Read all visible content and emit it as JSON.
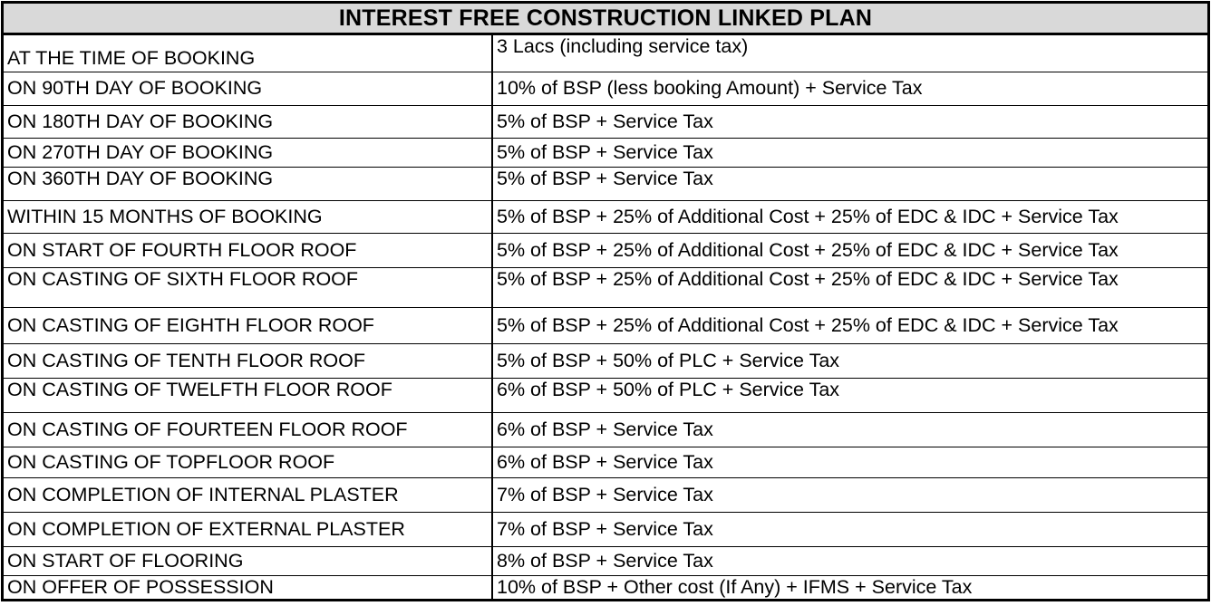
{
  "title": "INTEREST FREE CONSTRUCTION LINKED PLAN",
  "rows": [
    {
      "stage": "AT THE TIME OF BOOKING",
      "payment": "3 Lacs (including service tax)"
    },
    {
      "stage": "ON 90TH DAY OF BOOKING",
      "payment": "10% of BSP (less booking Amount) + Service Tax"
    },
    {
      "stage": "ON 180TH DAY OF BOOKING",
      "payment": "5% of BSP + Service Tax"
    },
    {
      "stage": "ON 270TH DAY OF BOOKING",
      "payment": "5% of BSP + Service Tax"
    },
    {
      "stage": "ON 360TH DAY OF BOOKING",
      "payment": "5% of BSP + Service Tax"
    },
    {
      "stage": "WITHIN 15 MONTHS OF BOOKING",
      "payment": "5% of BSP + 25% of Additional Cost + 25% of EDC & IDC + Service Tax"
    },
    {
      "stage": "ON START OF FOURTH FLOOR ROOF",
      "payment": "5% of BSP + 25% of Additional Cost + 25% of EDC & IDC + Service Tax"
    },
    {
      "stage": "ON CASTING OF SIXTH FLOOR ROOF",
      "payment": "5% of BSP + 25% of Additional Cost + 25% of EDC & IDC + Service Tax"
    },
    {
      "stage": "ON CASTING OF EIGHTH FLOOR ROOF",
      "payment": "5% of BSP + 25% of Additional Cost + 25% of EDC & IDC + Service Tax"
    },
    {
      "stage": "ON CASTING OF TENTH FLOOR ROOF",
      "payment": "5% of BSP + 50% of PLC + Service Tax"
    },
    {
      "stage": "ON CASTING OF TWELFTH FLOOR ROOF",
      "payment": "6% of BSP + 50% of PLC + Service Tax"
    },
    {
      "stage": "ON CASTING OF FOURTEEN FLOOR ROOF",
      "payment": "6% of BSP + Service Tax"
    },
    {
      "stage": "ON CASTING OF TOPFLOOR ROOF",
      "payment": "6% of BSP + Service Tax"
    },
    {
      "stage": "ON COMPLETION OF INTERNAL PLASTER",
      "payment": "7% of BSP + Service Tax"
    },
    {
      "stage": "ON COMPLETION OF EXTERNAL PLASTER",
      "payment": "7% of BSP + Service Tax"
    },
    {
      "stage": "ON START OF FLOORING",
      "payment": "8% of BSP + Service Tax"
    },
    {
      "stage": "ON OFFER OF POSSESSION",
      "payment": "10% of BSP + Other cost (If Any) + IFMS + Service Tax"
    }
  ]
}
